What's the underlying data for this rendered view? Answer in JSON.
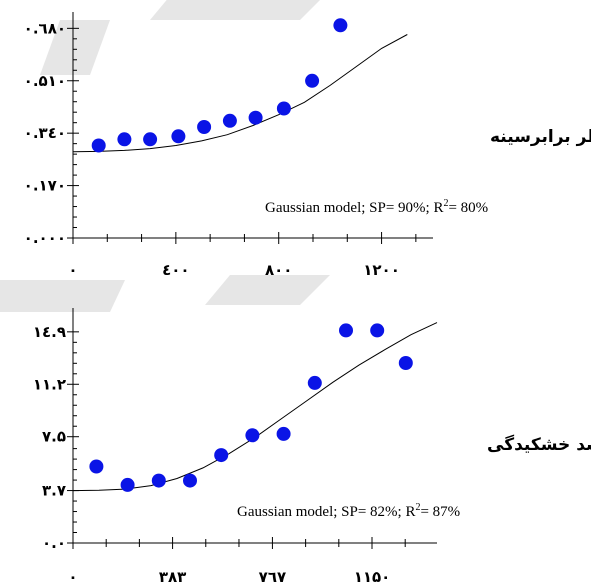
{
  "colors": {
    "points": "#0a14e6",
    "axis": "#000000",
    "curve": "#000000"
  },
  "chart_data": [
    {
      "type": "scatter",
      "title": "قطر برابرسینه",
      "model": {
        "prefix": "Gaussian model; SP= 90%; R",
        "sup": "2",
        "suffix": "= 80%"
      },
      "xlim": [
        0,
        1400
      ],
      "ylim": [
        0.0,
        0.72
      ],
      "xticks": [
        0,
        400,
        800,
        1200
      ],
      "xtick_labels": [
        "۰",
        "٤۰۰",
        "۸۰۰",
        "۱۲۰۰"
      ],
      "yticks": [
        0.0,
        0.17,
        0.34,
        0.51,
        0.68
      ],
      "ytick_labels": [
        "۰.۰۰۰",
        "۰.۱۷۰",
        "۰.۳٤۰",
        "۰.۵۱۰",
        "۰.٦۸۰"
      ],
      "points": {
        "x": [
          100,
          200,
          300,
          410,
          510,
          610,
          710,
          820,
          930,
          1040
        ],
        "y": [
          0.3,
          0.32,
          0.32,
          0.33,
          0.36,
          0.38,
          0.39,
          0.42,
          0.51,
          0.69
        ]
      },
      "fit": {
        "x": [
          0,
          100,
          200,
          300,
          400,
          500,
          600,
          700,
          800,
          900,
          1000,
          1100,
          1200,
          1300
        ],
        "y": [
          0.28,
          0.281,
          0.284,
          0.29,
          0.3,
          0.315,
          0.335,
          0.365,
          0.4,
          0.44,
          0.495,
          0.555,
          0.615,
          0.66
        ]
      }
    },
    {
      "type": "scatter",
      "title": "درصد خشکیدگی",
      "model": {
        "prefix": "Gaussian model; SP= 82%; R",
        "sup": "2",
        "suffix": "= 87%"
      },
      "xlim": [
        0,
        1400
      ],
      "ylim": [
        0.0,
        16.3
      ],
      "xticks": [
        0,
        383,
        767,
        1150
      ],
      "xtick_labels": [
        "۰",
        "۳۸۳",
        "٧٦٧",
        "۱۱۵۰"
      ],
      "yticks": [
        0.0,
        3.7,
        7.5,
        11.2,
        14.9
      ],
      "ytick_labels": [
        "۰.۰",
        "۳.٧",
        "٧.۵",
        "۱۱.۲",
        "۱٤.۹"
      ],
      "points": {
        "x": [
          90,
          210,
          330,
          450,
          570,
          690,
          810,
          930,
          1050,
          1170,
          1280
        ],
        "y": [
          5.4,
          4.1,
          4.4,
          4.4,
          6.2,
          7.6,
          7.7,
          11.3,
          15.0,
          15.0,
          12.7
        ]
      },
      "fit": {
        "x": [
          0,
          100,
          200,
          300,
          400,
          500,
          600,
          700,
          800,
          900,
          1000,
          1100,
          1200,
          1300,
          1400
        ],
        "y": [
          3.7,
          3.72,
          3.8,
          4.05,
          4.55,
          5.3,
          6.3,
          7.45,
          8.75,
          10.05,
          11.35,
          12.55,
          13.65,
          14.7,
          15.55
        ]
      }
    }
  ]
}
